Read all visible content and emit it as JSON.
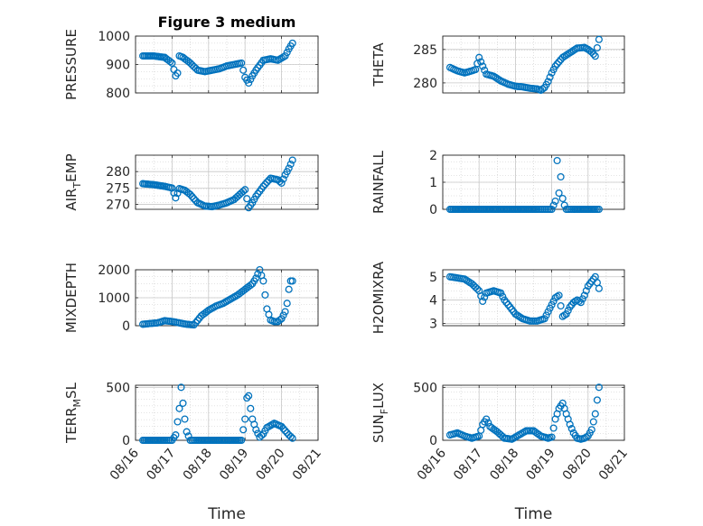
{
  "figure_title": "Figure 3 medium",
  "colors": {
    "marker": "#0072BD",
    "axis": "#262626",
    "grid": "#c8c8c8",
    "background": "#ffffff"
  },
  "chart_data": [
    {
      "type": "scatter",
      "ylabel": "PRESSURE",
      "ylabel_sub": "",
      "ylim": [
        800,
        1000
      ],
      "yticks": [
        800,
        900,
        1000
      ],
      "xlim": [
        0,
        5
      ],
      "xticks": [
        0,
        1,
        2,
        3,
        4,
        5
      ],
      "xticklabels": [
        "08/16",
        "08/17",
        "08/18",
        "08/19",
        "08/20",
        "08/21"
      ],
      "xticklabels_shown": false,
      "xlabel": "",
      "grid": true,
      "series": [
        {
          "x_days_since_08_16": [
            0.2,
            0.5,
            0.8,
            1.0,
            1.1,
            1.15,
            1.2,
            1.3,
            1.5,
            1.7,
            1.9,
            2.1,
            2.3,
            2.5,
            2.7,
            2.9,
            3.0,
            3.1,
            3.2,
            3.3,
            3.5,
            3.7,
            3.9,
            4.1,
            4.2,
            4.3
          ],
          "y": [
            930,
            930,
            925,
            905,
            860,
            870,
            930,
            925,
            905,
            880,
            875,
            880,
            885,
            895,
            900,
            905,
            855,
            835,
            860,
            880,
            915,
            920,
            915,
            930,
            955,
            975
          ]
        }
      ]
    },
    {
      "type": "scatter",
      "ylabel": "THETA",
      "ylabel_sub": "",
      "ylim": [
        278.5,
        287
      ],
      "yticks": [
        280,
        285
      ],
      "xlim": [
        0,
        5
      ],
      "xticks": [
        0,
        1,
        2,
        3,
        4,
        5
      ],
      "xticklabels": [
        "08/16",
        "08/17",
        "08/18",
        "08/19",
        "08/20",
        "08/21"
      ],
      "xticklabels_shown": false,
      "xlabel": "",
      "grid": true,
      "series": [
        {
          "x_days_since_08_16": [
            0.2,
            0.4,
            0.6,
            0.8,
            0.9,
            1.0,
            1.1,
            1.2,
            1.4,
            1.6,
            1.8,
            2.0,
            2.2,
            2.4,
            2.6,
            2.7,
            2.8,
            2.9,
            3.0,
            3.1,
            3.3,
            3.5,
            3.7,
            3.9,
            4.0,
            4.1,
            4.2,
            4.3
          ],
          "y": [
            282.3,
            281.8,
            281.5,
            281.8,
            282.0,
            283.8,
            282.5,
            281.3,
            281.0,
            280.3,
            279.8,
            279.5,
            279.4,
            279.2,
            279.1,
            278.9,
            279.3,
            280.2,
            281.5,
            282.5,
            283.8,
            284.5,
            285.2,
            285.3,
            285.0,
            284.6,
            284.0,
            286.5
          ]
        }
      ]
    },
    {
      "type": "scatter",
      "ylabel": "AIR",
      "ylabel_sub": "T",
      "ylabel_rest": "EMP",
      "ylim": [
        268.5,
        285
      ],
      "yticks": [
        270,
        275,
        280
      ],
      "xlim": [
        0,
        5
      ],
      "xticks": [
        0,
        1,
        2,
        3,
        4,
        5
      ],
      "xticklabels": [
        "08/16",
        "08/17",
        "08/18",
        "08/19",
        "08/20",
        "08/21"
      ],
      "xticklabels_shown": false,
      "xlabel": "",
      "grid": true,
      "series": [
        {
          "x_days_since_08_16": [
            0.2,
            0.5,
            0.8,
            1.0,
            1.1,
            1.2,
            1.35,
            1.5,
            1.7,
            1.9,
            2.1,
            2.3,
            2.5,
            2.7,
            2.9,
            3.0,
            3.1,
            3.2,
            3.3,
            3.5,
            3.7,
            3.9,
            4.0,
            4.1,
            4.2,
            4.3
          ],
          "y": [
            276.3,
            276.0,
            275.5,
            275.0,
            272.0,
            274.8,
            274.3,
            273.0,
            270.5,
            269.5,
            269.3,
            269.8,
            270.5,
            271.5,
            273.5,
            274.5,
            269.0,
            270.5,
            272.5,
            275.5,
            278.0,
            277.5,
            276.5,
            279.0,
            281.0,
            283.5
          ]
        }
      ]
    },
    {
      "type": "scatter",
      "ylabel": "RAINFALL",
      "ylabel_sub": "",
      "ylim": [
        0,
        2
      ],
      "yticks": [
        0,
        1,
        2
      ],
      "xlim": [
        0,
        5
      ],
      "xticks": [
        0,
        1,
        2,
        3,
        4,
        5
      ],
      "xticklabels": [
        "08/16",
        "08/17",
        "08/18",
        "08/19",
        "08/20",
        "08/21"
      ],
      "xticklabels_shown": false,
      "xlabel": "",
      "grid": true,
      "series": [
        {
          "x_days_since_08_16": [
            0.2,
            0.5,
            0.8,
            1.1,
            1.4,
            1.7,
            2.0,
            2.3,
            2.6,
            2.8,
            3.0,
            3.1,
            3.15,
            3.2,
            3.25,
            3.3,
            3.35,
            3.4,
            3.6,
            3.9,
            4.2,
            4.3
          ],
          "y": [
            0,
            0,
            0,
            0,
            0,
            0,
            0,
            0,
            0,
            0,
            0,
            0.3,
            1.8,
            0.6,
            1.2,
            0.4,
            0.15,
            0,
            0,
            0,
            0,
            0
          ]
        }
      ]
    },
    {
      "type": "scatter",
      "ylabel": "MIXDEPTH",
      "ylabel_sub": "",
      "ylim": [
        0,
        2000
      ],
      "yticks": [
        0,
        1000,
        2000
      ],
      "xlim": [
        0,
        5
      ],
      "xticks": [
        0,
        1,
        2,
        3,
        4,
        5
      ],
      "xticklabels": [
        "08/16",
        "08/17",
        "08/18",
        "08/19",
        "08/20",
        "08/21"
      ],
      "xticklabels_shown": false,
      "xlabel": "",
      "grid": true,
      "series": [
        {
          "x_days_since_08_16": [
            0.2,
            0.4,
            0.6,
            0.8,
            1.0,
            1.2,
            1.4,
            1.6,
            1.8,
            2.0,
            2.2,
            2.4,
            2.6,
            2.8,
            3.0,
            3.2,
            3.3,
            3.4,
            3.5,
            3.6,
            3.7,
            3.8,
            3.9,
            4.0,
            4.1,
            4.15,
            4.2,
            4.25,
            4.3
          ],
          "y": [
            50,
            80,
            100,
            180,
            150,
            100,
            50,
            30,
            350,
            550,
            700,
            800,
            950,
            1100,
            1300,
            1500,
            1700,
            2000,
            1600,
            600,
            200,
            150,
            150,
            250,
            500,
            800,
            1300,
            1600,
            1600
          ]
        }
      ]
    },
    {
      "type": "scatter",
      "ylabel": "H2OMIXRA",
      "ylabel_sub": "",
      "ylim": [
        2.9,
        5.3
      ],
      "yticks": [
        3,
        4,
        5
      ],
      "xlim": [
        0,
        5
      ],
      "xticks": [
        0,
        1,
        2,
        3,
        4,
        5
      ],
      "xticklabels": [
        "08/16",
        "08/17",
        "08/18",
        "08/19",
        "08/20",
        "08/21"
      ],
      "xticklabels_shown": false,
      "xlabel": "",
      "grid": true,
      "series": [
        {
          "x_days_since_08_16": [
            0.2,
            0.4,
            0.6,
            0.8,
            1.0,
            1.1,
            1.2,
            1.4,
            1.6,
            1.7,
            1.8,
            2.0,
            2.2,
            2.4,
            2.6,
            2.8,
            2.9,
            3.0,
            3.1,
            3.2,
            3.3,
            3.4,
            3.5,
            3.6,
            3.7,
            3.8,
            3.9,
            4.0,
            4.1,
            4.2,
            4.3
          ],
          "y": [
            5.0,
            4.95,
            4.9,
            4.7,
            4.4,
            3.95,
            4.3,
            4.4,
            4.3,
            4.0,
            3.8,
            3.4,
            3.2,
            3.1,
            3.1,
            3.2,
            3.5,
            3.8,
            4.1,
            4.2,
            3.3,
            3.4,
            3.7,
            3.9,
            4.0,
            3.9,
            4.2,
            4.6,
            4.8,
            5.0,
            4.5
          ]
        }
      ]
    },
    {
      "type": "scatter",
      "ylabel": "TERR",
      "ylabel_sub": "M",
      "ylabel_rest": "SL",
      "ylim": [
        0,
        520
      ],
      "yticks": [
        0,
        500
      ],
      "xlim": [
        0,
        5
      ],
      "xticks": [
        0,
        1,
        2,
        3,
        4,
        5
      ],
      "xticklabels": [
        "08/16",
        "08/17",
        "08/18",
        "08/19",
        "08/20",
        "08/21"
      ],
      "xticklabels_shown": true,
      "xlabel": "Time",
      "grid": true,
      "series": [
        {
          "x_days_since_08_16": [
            0.2,
            0.5,
            0.8,
            1.0,
            1.1,
            1.2,
            1.25,
            1.3,
            1.35,
            1.4,
            1.5,
            1.7,
            2.0,
            2.3,
            2.6,
            2.9,
            3.0,
            3.05,
            3.1,
            3.15,
            3.2,
            3.3,
            3.4,
            3.5,
            3.6,
            3.8,
            4.0,
            4.1,
            4.2,
            4.3
          ],
          "y": [
            0,
            0,
            0,
            0,
            50,
            300,
            500,
            350,
            200,
            80,
            0,
            0,
            0,
            0,
            0,
            0,
            200,
            400,
            420,
            300,
            200,
            100,
            30,
            60,
            120,
            160,
            130,
            90,
            50,
            20
          ]
        }
      ]
    },
    {
      "type": "scatter",
      "ylabel": "SUN",
      "ylabel_sub": "F",
      "ylabel_rest": "LUX",
      "ylim": [
        0,
        520
      ],
      "yticks": [
        0,
        500
      ],
      "xlim": [
        0,
        5
      ],
      "xticks": [
        0,
        1,
        2,
        3,
        4,
        5
      ],
      "xticklabels": [
        "08/16",
        "08/17",
        "08/18",
        "08/19",
        "08/20",
        "08/21"
      ],
      "xticklabels_shown": true,
      "xlabel": "Time",
      "grid": true,
      "series": [
        {
          "x_days_since_08_16": [
            0.2,
            0.4,
            0.6,
            0.8,
            1.0,
            1.1,
            1.2,
            1.3,
            1.5,
            1.7,
            1.9,
            2.1,
            2.3,
            2.5,
            2.7,
            2.9,
            3.0,
            3.1,
            3.2,
            3.3,
            3.4,
            3.5,
            3.6,
            3.7,
            3.8,
            3.9,
            4.0,
            4.1,
            4.2,
            4.25,
            4.3
          ],
          "y": [
            50,
            70,
            40,
            20,
            40,
            150,
            200,
            130,
            80,
            20,
            10,
            50,
            90,
            90,
            40,
            20,
            30,
            200,
            300,
            350,
            250,
            150,
            70,
            20,
            10,
            20,
            40,
            100,
            250,
            380,
            500
          ]
        }
      ]
    }
  ]
}
